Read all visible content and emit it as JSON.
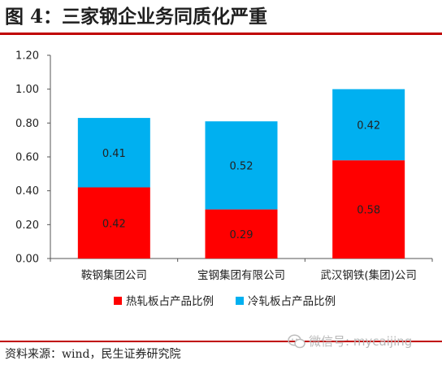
{
  "title": "图 4：三家钢企业务同质化严重",
  "source": "资料来源：wind，民生证券研究院",
  "watermark": "微信号: mycaijing",
  "colors": {
    "series1": "#ff0000",
    "series2": "#00b0f0",
    "accent_rule": "#c00000"
  },
  "chart_data": {
    "type": "bar",
    "stacked": true,
    "categories": [
      "鞍钢集团公司",
      "宝钢集团有限公司",
      "武汉钢铁(集团)公司"
    ],
    "series": [
      {
        "name": "热轧板占产品比例",
        "values": [
          0.42,
          0.29,
          0.58
        ],
        "color": "#ff0000"
      },
      {
        "name": "冷轧板占产品比例",
        "values": [
          0.41,
          0.52,
          0.42
        ],
        "color": "#00b0f0"
      }
    ],
    "yticks": [
      "0.00",
      "0.20",
      "0.40",
      "0.60",
      "0.80",
      "1.00",
      "1.20"
    ],
    "ylim": [
      0,
      1.2
    ],
    "grid": false,
    "legend_position": "bottom"
  }
}
